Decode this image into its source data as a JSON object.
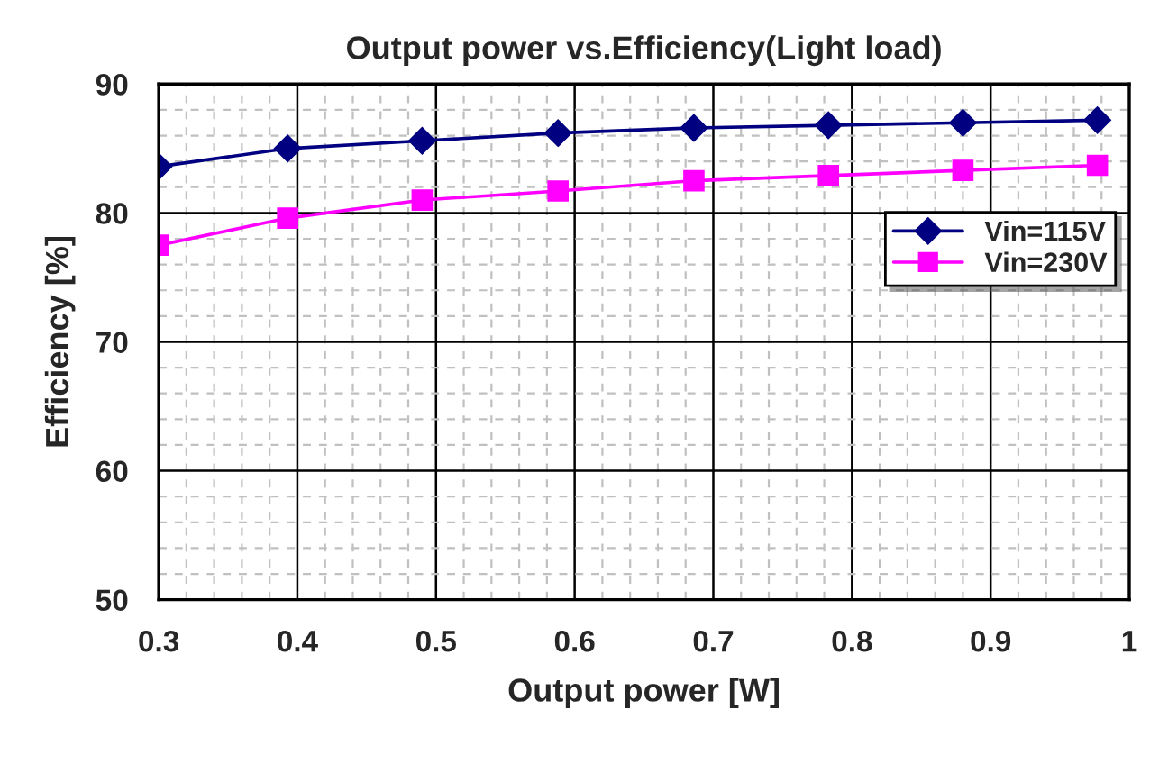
{
  "chart_data": {
    "type": "line",
    "title": "Output power vs.Efficiency(Light load)",
    "xlabel": "Output power [W]",
    "ylabel": "Efficiency [%]",
    "xlim": [
      0.3,
      1
    ],
    "xticks": [
      0.3,
      0.4,
      0.5,
      0.6,
      0.7,
      0.8,
      0.9,
      {
        "value": 1,
        "label": "1"
      }
    ],
    "ylim": [
      50,
      90
    ],
    "yticks": [
      50,
      60,
      70,
      80,
      90
    ],
    "grid": true,
    "legend": "right",
    "x": [
      0.3,
      0.393,
      0.49,
      0.588,
      0.686,
      0.783,
      0.88,
      0.977
    ],
    "series": [
      {
        "name": "Vin=115V",
        "color": "#000080",
        "marker": "diamond",
        "values": [
          83.6,
          85.0,
          85.6,
          86.2,
          86.6,
          86.8,
          87.0,
          87.2
        ]
      },
      {
        "name": "Vin=230V",
        "color": "#ff00ff",
        "marker": "square",
        "values": [
          77.5,
          79.6,
          81.0,
          81.7,
          82.5,
          82.9,
          83.3,
          83.7
        ]
      }
    ]
  }
}
